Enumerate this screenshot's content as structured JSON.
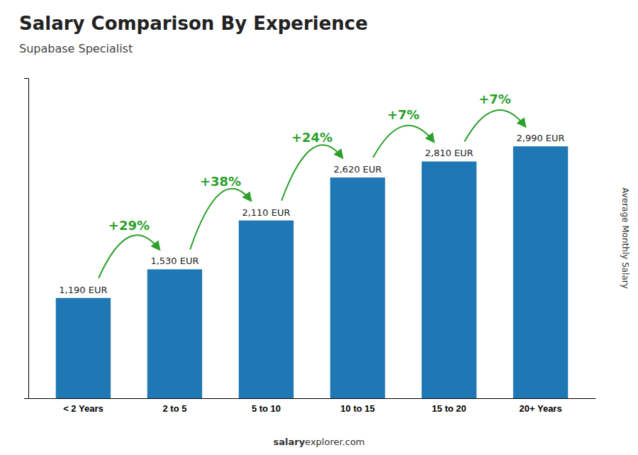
{
  "chart_data": {
    "type": "bar",
    "title": "Salary Comparison By Experience",
    "subtitle": "Supabase Specialist",
    "ylabel": "Average Monthly Salary",
    "categories": [
      "< 2 Years",
      "2 to 5",
      "5 to 10",
      "10 to 15",
      "15 to 20",
      "20+ Years"
    ],
    "values": [
      1190,
      1530,
      2110,
      2620,
      2810,
      2990
    ],
    "value_labels": [
      "1,190 EUR",
      "1,530 EUR",
      "2,110 EUR",
      "2,620 EUR",
      "2,810 EUR",
      "2,990 EUR"
    ],
    "data_labels": true,
    "pct_labels": [
      "+29%",
      "+38%",
      "+24%",
      "+7%",
      "+7%"
    ],
    "footer": [
      "salary",
      "explorer.com"
    ],
    "ylim": [
      0,
      3800
    ],
    "tick_labels": "x",
    "grid": false
  }
}
